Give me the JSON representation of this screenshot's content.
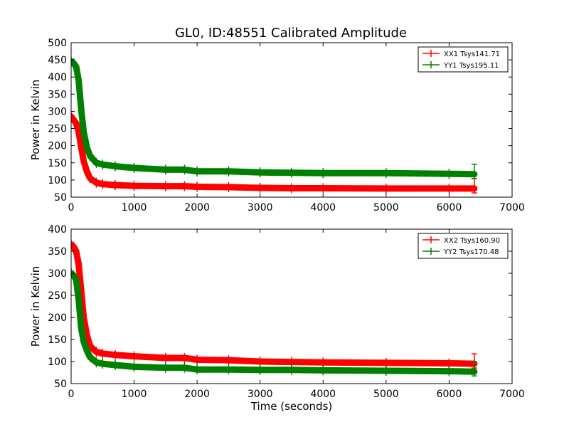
{
  "title": "GL0, ID:48551 Calibrated Amplitude",
  "colors": {
    "red": "#ff0000",
    "green": "#008000",
    "frame": "#000000",
    "background": "#ffffff"
  },
  "chart_data": [
    {
      "type": "line",
      "xlabel": "",
      "ylabel": "Power in Kelvin",
      "xlim": [
        0,
        7000
      ],
      "ylim": [
        50,
        500
      ],
      "xticks": [
        0,
        1000,
        2000,
        3000,
        4000,
        5000,
        6000,
        7000
      ],
      "yticks": [
        50,
        100,
        150,
        200,
        250,
        300,
        350,
        400,
        450,
        500
      ],
      "grid": false,
      "legend_position": "top-right",
      "series": [
        {
          "name": "XX1 Tsys141.71",
          "color": "#ff0000",
          "x": [
            0,
            40,
            80,
            120,
            160,
            200,
            250,
            300,
            400,
            500,
            700,
            1000,
            1500,
            1800,
            2000,
            2500,
            3000,
            3500,
            4000,
            5000,
            6000,
            6400
          ],
          "y": [
            285,
            275,
            265,
            240,
            195,
            155,
            125,
            105,
            92,
            88,
            85,
            83,
            82,
            82,
            80,
            79,
            77,
            76,
            76,
            75,
            75,
            75
          ]
        },
        {
          "name": "YY1 Tsys195.11",
          "color": "#008000",
          "x": [
            0,
            40,
            80,
            120,
            160,
            200,
            250,
            300,
            400,
            500,
            700,
            1000,
            1500,
            1800,
            2000,
            2500,
            3000,
            3500,
            4000,
            5000,
            6000,
            6400
          ],
          "y": [
            445,
            440,
            430,
            390,
            305,
            240,
            195,
            170,
            150,
            145,
            140,
            135,
            130,
            130,
            125,
            125,
            122,
            121,
            120,
            120,
            118,
            117
          ]
        }
      ]
    },
    {
      "type": "line",
      "xlabel": "Time (seconds)",
      "ylabel": "Power in Kelvin",
      "xlim": [
        0,
        7000
      ],
      "ylim": [
        50,
        400
      ],
      "xticks": [
        0,
        1000,
        2000,
        3000,
        4000,
        5000,
        6000,
        7000
      ],
      "yticks": [
        50,
        100,
        150,
        200,
        250,
        300,
        350,
        400
      ],
      "grid": false,
      "legend_position": "top-right",
      "series": [
        {
          "name": "XX2 Tsys160.90",
          "color": "#ff0000",
          "x": [
            0,
            40,
            80,
            120,
            160,
            200,
            250,
            300,
            400,
            500,
            700,
            1000,
            1500,
            1800,
            2000,
            2500,
            3000,
            3500,
            4000,
            5000,
            6000,
            6400
          ],
          "y": [
            365,
            360,
            350,
            320,
            260,
            200,
            160,
            135,
            122,
            118,
            115,
            112,
            108,
            108,
            104,
            103,
            100,
            99,
            98,
            97,
            96,
            95
          ]
        },
        {
          "name": "YY2 Tsys170.48",
          "color": "#008000",
          "x": [
            0,
            40,
            80,
            120,
            160,
            200,
            250,
            300,
            400,
            500,
            700,
            1000,
            1500,
            1800,
            2000,
            2500,
            3000,
            3500,
            4000,
            5000,
            6000,
            6400
          ],
          "y": [
            300,
            295,
            285,
            240,
            175,
            145,
            125,
            110,
            98,
            95,
            92,
            88,
            86,
            86,
            82,
            82,
            81,
            81,
            80,
            79,
            78,
            77
          ]
        }
      ]
    }
  ]
}
